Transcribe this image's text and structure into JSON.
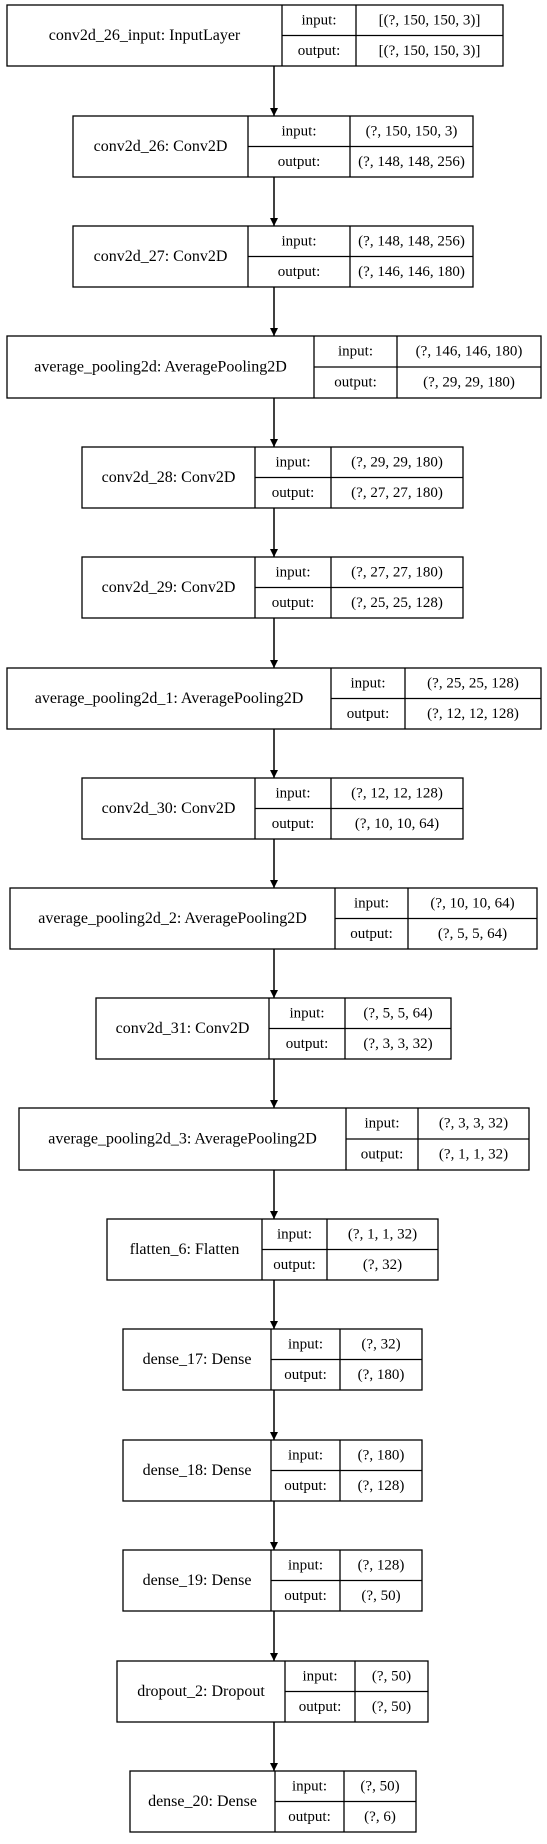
{
  "layers": [
    {
      "name": "conv2d_26_input: InputLayer",
      "input_label": "input:",
      "output_label": "output:",
      "input": "[(?, 150, 150, 3)]",
      "output": "[(?, 150, 150, 3)]"
    },
    {
      "name": "conv2d_26: Conv2D",
      "input_label": "input:",
      "output_label": "output:",
      "input": "(?, 150, 150, 3)",
      "output": "(?, 148, 148, 256)"
    },
    {
      "name": "conv2d_27: Conv2D",
      "input_label": "input:",
      "output_label": "output:",
      "input": "(?, 148, 148, 256)",
      "output": "(?, 146, 146, 180)"
    },
    {
      "name": "average_pooling2d: AveragePooling2D",
      "input_label": "input:",
      "output_label": "output:",
      "input": "(?, 146, 146, 180)",
      "output": "(?, 29, 29, 180)"
    },
    {
      "name": "conv2d_28: Conv2D",
      "input_label": "input:",
      "output_label": "output:",
      "input": "(?, 29, 29, 180)",
      "output": "(?, 27, 27, 180)"
    },
    {
      "name": "conv2d_29: Conv2D",
      "input_label": "input:",
      "output_label": "output:",
      "input": "(?, 27, 27, 180)",
      "output": "(?, 25, 25, 128)"
    },
    {
      "name": "average_pooling2d_1: AveragePooling2D",
      "input_label": "input:",
      "output_label": "output:",
      "input": "(?, 25, 25, 128)",
      "output": "(?, 12, 12, 128)"
    },
    {
      "name": "conv2d_30: Conv2D",
      "input_label": "input:",
      "output_label": "output:",
      "input": "(?, 12, 12, 128)",
      "output": "(?, 10, 10, 64)"
    },
    {
      "name": "average_pooling2d_2: AveragePooling2D",
      "input_label": "input:",
      "output_label": "output:",
      "input": "(?, 10, 10, 64)",
      "output": "(?, 5, 5, 64)"
    },
    {
      "name": "conv2d_31: Conv2D",
      "input_label": "input:",
      "output_label": "output:",
      "input": "(?, 5, 5, 64)",
      "output": "(?, 3, 3, 32)"
    },
    {
      "name": "average_pooling2d_3: AveragePooling2D",
      "input_label": "input:",
      "output_label": "output:",
      "input": "(?, 3, 3, 32)",
      "output": "(?, 1, 1, 32)"
    },
    {
      "name": "flatten_6: Flatten",
      "input_label": "input:",
      "output_label": "output:",
      "input": "(?, 1, 1, 32)",
      "output": "(?, 32)"
    },
    {
      "name": "dense_17: Dense",
      "input_label": "input:",
      "output_label": "output:",
      "input": "(?, 32)",
      "output": "(?, 180)"
    },
    {
      "name": "dense_18: Dense",
      "input_label": "input:",
      "output_label": "output:",
      "input": "(?, 180)",
      "output": "(?, 128)"
    },
    {
      "name": "dense_19: Dense",
      "input_label": "input:",
      "output_label": "output:",
      "input": "(?, 128)",
      "output": "(?, 50)"
    },
    {
      "name": "dropout_2: Dropout",
      "input_label": "input:",
      "output_label": "output:",
      "input": "(?, 50)",
      "output": "(?, 50)"
    },
    {
      "name": "dense_20: Dense",
      "input_label": "input:",
      "output_label": "output:",
      "input": "(?, 50)",
      "output": "(?, 6)"
    }
  ]
}
